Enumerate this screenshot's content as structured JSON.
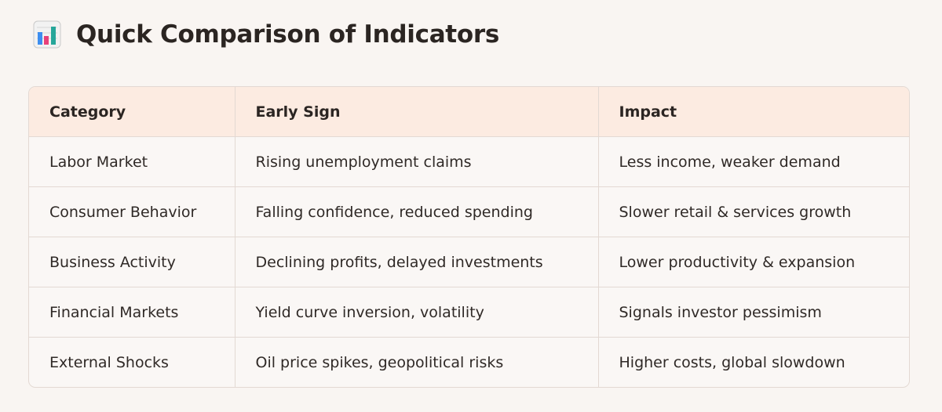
{
  "heading": {
    "icon": "bar-chart-icon",
    "title": "Quick Comparison of Indicators"
  },
  "table": {
    "headers": [
      "Category",
      "Early Sign",
      "Impact"
    ],
    "rows": [
      [
        "Labor Market",
        "Rising unemployment claims",
        "Less income, weaker demand"
      ],
      [
        "Consumer Behavior",
        "Falling confidence, reduced spending",
        "Slower retail & services growth"
      ],
      [
        "Business Activity",
        "Declining profits, delayed investments",
        "Lower productivity & expansion"
      ],
      [
        "Financial Markets",
        "Yield curve inversion, volatility",
        "Signals investor pessimism"
      ],
      [
        "External Shocks",
        "Oil price spikes, geopolitical risks",
        "Higher costs, global slowdown"
      ]
    ]
  }
}
